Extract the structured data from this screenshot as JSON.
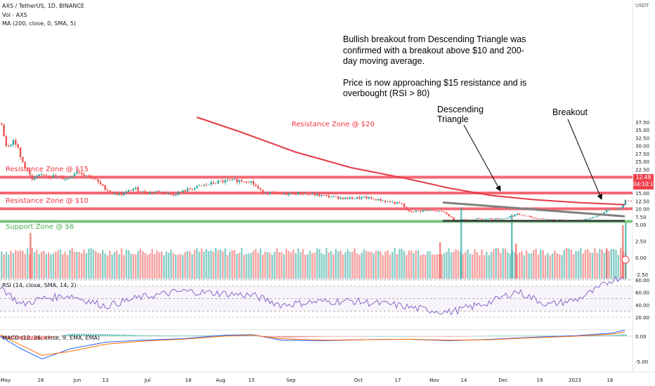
{
  "header": {
    "symbol": "AXS / TetherUS, 1D, BINANCE",
    "vol": "Vol · AXS",
    "ma": "MA (200, close, 0, SMA, 5)",
    "rsi": "RSI (14, close, SMA, 14, 2)",
    "macd": "MACD (12, 26, close, 9, EMA, EMA)"
  },
  "annotation": {
    "paragraph1": "Bullish breakout from Descending Triangle was confirmed with a breakout above $10 and 200-day moving average.",
    "paragraph2": "Price is now approaching $15 resistance and is overbought (RSI > 80)"
  },
  "labels": {
    "descending": "Descending",
    "triangle": "Triangle",
    "breakout": "Breakout"
  },
  "zones": [
    {
      "label": "Resistance Zone @ $20",
      "price": 20,
      "color": "#f23645"
    },
    {
      "label": "Resistance Zone @ $15",
      "price": 15,
      "color": "#f23645"
    },
    {
      "label": "Resistance Zone @ $10",
      "price": 10,
      "color": "#f23645"
    },
    {
      "label": "Support Zone @ $6",
      "price": 6,
      "color": "#4caf50"
    }
  ],
  "price_tag": {
    "price": "12.48",
    "countdown": "04:10:17"
  },
  "currency": "USDT",
  "colors": {
    "up": "#26a69a",
    "down": "#ef5350",
    "ma": "#e23a48",
    "rsi": "#7e57c2",
    "macd": "#2962ff",
    "signal": "#ff6d00",
    "trend": "#808080"
  },
  "chart_data": {
    "type": "candlestick",
    "x_ticks": [
      "May",
      "16",
      "Jun",
      "13",
      "Jul",
      "18",
      "Aug",
      "15",
      "Sep",
      "Oct",
      "17",
      "Nov",
      "14",
      "Dec",
      "19",
      "2023",
      "16"
    ],
    "price_ticks": [
      "37.50",
      "35.00",
      "32.50",
      "30.00",
      "27.50",
      "25.00",
      "22.50",
      "20.00",
      "17.50",
      "15.00",
      "12.50",
      "10.00",
      "7.50",
      "5.00",
      "2.50",
      "0.00",
      "-2.50"
    ],
    "rsi_ticks": [
      "80.00",
      "60.00",
      "40.00",
      "20.00"
    ],
    "macd_ticks": [
      "0.00",
      "-5.00"
    ],
    "price_path": [
      {
        "x": 0,
        "close": 38
      },
      {
        "x": 8,
        "close": 30
      },
      {
        "x": 20,
        "close": 32
      },
      {
        "x": 28,
        "close": 26
      },
      {
        "x": 36,
        "close": 23
      },
      {
        "x": 44,
        "close": 19
      },
      {
        "x": 60,
        "close": 21
      },
      {
        "x": 80,
        "close": 20
      },
      {
        "x": 95,
        "close": 19.5
      },
      {
        "x": 108,
        "close": 22
      },
      {
        "x": 118,
        "close": 21
      },
      {
        "x": 130,
        "close": 20
      },
      {
        "x": 145,
        "close": 17
      },
      {
        "x": 158,
        "close": 15
      },
      {
        "x": 172,
        "close": 14.5
      },
      {
        "x": 190,
        "close": 16.5
      },
      {
        "x": 205,
        "close": 15
      },
      {
        "x": 225,
        "close": 15.5
      },
      {
        "x": 245,
        "close": 14.5
      },
      {
        "x": 265,
        "close": 16
      },
      {
        "x": 290,
        "close": 17.5
      },
      {
        "x": 310,
        "close": 18.5
      },
      {
        "x": 335,
        "close": 19
      },
      {
        "x": 355,
        "close": 18.8
      },
      {
        "x": 370,
        "close": 15.5
      },
      {
        "x": 395,
        "close": 14.5
      },
      {
        "x": 425,
        "close": 15
      },
      {
        "x": 455,
        "close": 14.2
      },
      {
        "x": 490,
        "close": 13.3
      },
      {
        "x": 520,
        "close": 13.5
      },
      {
        "x": 545,
        "close": 12.5
      },
      {
        "x": 570,
        "close": 11.5
      },
      {
        "x": 580,
        "close": 9
      },
      {
        "x": 605,
        "close": 9.5
      },
      {
        "x": 630,
        "close": 9
      },
      {
        "x": 645,
        "close": 6.5
      },
      {
        "x": 680,
        "close": 6.8
      },
      {
        "x": 715,
        "close": 6.9
      },
      {
        "x": 735,
        "close": 8.3
      },
      {
        "x": 760,
        "close": 7
      },
      {
        "x": 790,
        "close": 6.5
      },
      {
        "x": 805,
        "close": 6.1
      },
      {
        "x": 820,
        "close": 6.3
      },
      {
        "x": 845,
        "close": 7.3
      },
      {
        "x": 862,
        "close": 9.5
      },
      {
        "x": 880,
        "close": 10
      },
      {
        "x": 889,
        "close": 12.48
      }
    ],
    "ma200_path": [
      {
        "x": 280,
        "close": 39
      },
      {
        "x": 340,
        "close": 34.5
      },
      {
        "x": 420,
        "close": 28
      },
      {
        "x": 500,
        "close": 23
      },
      {
        "x": 580,
        "close": 19.5
      },
      {
        "x": 640,
        "close": 16.5
      },
      {
        "x": 700,
        "close": 14.2
      },
      {
        "x": 760,
        "close": 12.9
      },
      {
        "x": 820,
        "close": 12
      },
      {
        "x": 889,
        "close": 11.3
      }
    ],
    "rsi_path": [
      {
        "x": 0,
        "rsi": 70
      },
      {
        "x": 30,
        "rsi": 40
      },
      {
        "x": 60,
        "rsi": 50
      },
      {
        "x": 100,
        "rsi": 55
      },
      {
        "x": 150,
        "rsi": 38
      },
      {
        "x": 200,
        "rsi": 52
      },
      {
        "x": 260,
        "rsi": 62
      },
      {
        "x": 320,
        "rsi": 58
      },
      {
        "x": 360,
        "rsi": 55
      },
      {
        "x": 400,
        "rsi": 40
      },
      {
        "x": 450,
        "rsi": 45
      },
      {
        "x": 500,
        "rsi": 46
      },
      {
        "x": 560,
        "rsi": 40
      },
      {
        "x": 600,
        "rsi": 33
      },
      {
        "x": 640,
        "rsi": 28
      },
      {
        "x": 700,
        "rsi": 45
      },
      {
        "x": 735,
        "rsi": 62
      },
      {
        "x": 780,
        "rsi": 40
      },
      {
        "x": 820,
        "rsi": 48
      },
      {
        "x": 850,
        "rsi": 65
      },
      {
        "x": 870,
        "rsi": 80
      },
      {
        "x": 889,
        "rsi": 86
      }
    ],
    "macd_path": [
      {
        "x": 0,
        "macd": 0
      },
      {
        "x": 30,
        "macd": -2.5
      },
      {
        "x": 60,
        "macd": -4.5
      },
      {
        "x": 100,
        "macd": -2.5
      },
      {
        "x": 150,
        "macd": -1.2
      },
      {
        "x": 200,
        "macd": -0.8
      },
      {
        "x": 260,
        "macd": -0.5
      },
      {
        "x": 320,
        "macd": 0.2
      },
      {
        "x": 360,
        "macd": 0.3
      },
      {
        "x": 400,
        "macd": -0.8
      },
      {
        "x": 460,
        "macd": -0.9
      },
      {
        "x": 520,
        "macd": -0.7
      },
      {
        "x": 580,
        "macd": -0.6
      },
      {
        "x": 640,
        "macd": -0.9
      },
      {
        "x": 700,
        "macd": -0.6
      },
      {
        "x": 760,
        "macd": -0.2
      },
      {
        "x": 820,
        "macd": 0.1
      },
      {
        "x": 870,
        "macd": 0.6
      },
      {
        "x": 889,
        "macd": 1.2
      }
    ],
    "signal_path": [
      {
        "x": 0,
        "macd": 0.3
      },
      {
        "x": 30,
        "macd": -1.8
      },
      {
        "x": 60,
        "macd": -3.8
      },
      {
        "x": 100,
        "macd": -3.0
      },
      {
        "x": 150,
        "macd": -1.6
      },
      {
        "x": 200,
        "macd": -1.0
      },
      {
        "x": 260,
        "macd": -0.6
      },
      {
        "x": 320,
        "macd": 0.0
      },
      {
        "x": 360,
        "macd": 0.2
      },
      {
        "x": 400,
        "macd": -0.5
      },
      {
        "x": 460,
        "macd": -0.8
      },
      {
        "x": 520,
        "macd": -0.7
      },
      {
        "x": 580,
        "macd": -0.6
      },
      {
        "x": 640,
        "macd": -0.8
      },
      {
        "x": 700,
        "macd": -0.7
      },
      {
        "x": 760,
        "macd": -0.3
      },
      {
        "x": 820,
        "macd": 0.0
      },
      {
        "x": 870,
        "macd": 0.4
      },
      {
        "x": 889,
        "macd": 0.8
      }
    ],
    "volume_spikes": [
      {
        "x": 42,
        "vol": 3.2
      },
      {
        "x": 625,
        "vol": 2.0
      },
      {
        "x": 655,
        "vol": 6.5
      },
      {
        "x": 727,
        "vol": 5.6
      },
      {
        "x": 733,
        "vol": 1.8
      },
      {
        "x": 862,
        "vol": 1.2
      },
      {
        "x": 885,
        "vol": 4.2
      },
      {
        "x": 889,
        "vol": 4.5
      }
    ],
    "descending_triangle": {
      "upper": [
        {
          "x": 630,
          "price": 12
        },
        {
          "x": 889,
          "price": 7.6
        }
      ],
      "lower": [
        {
          "x": 630,
          "price": 6.2
        },
        {
          "x": 889,
          "price": 6.2
        }
      ]
    }
  }
}
